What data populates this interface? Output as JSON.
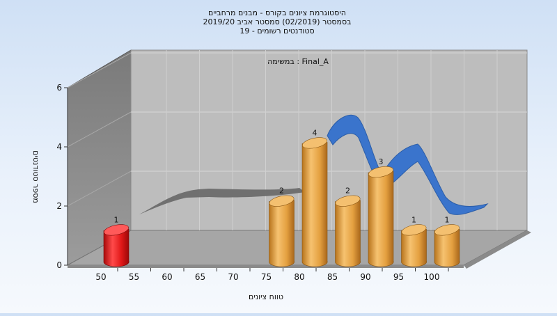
{
  "chart_data": {
    "type": "bar",
    "title_lines": [
      "היסטוגרמת ציונים בקורס - מבנים מרחביים",
      "בסמסטר  (02/2019)  סמסטר אביב 2019/20",
      "סטודנטים רשומים - 19"
    ],
    "task_label": "במשימה : Final_A",
    "xlabel": "טווח ציונים",
    "ylabel": "מספר סטודנטים",
    "x_ticks": [
      "50",
      "55",
      "60",
      "65",
      "70",
      "75",
      "80",
      "85",
      "90",
      "95",
      "100"
    ],
    "y_ticks": [
      "0",
      "2",
      "4",
      "6"
    ],
    "ylim": [
      0,
      6
    ],
    "bars": [
      {
        "x": 50,
        "value": 1,
        "label": "1",
        "color": "#e01818"
      },
      {
        "x": 75,
        "value": 2,
        "label": "2",
        "color": "#e8a442"
      },
      {
        "x": 80,
        "value": 4,
        "label": "4",
        "color": "#e8a442"
      },
      {
        "x": 85,
        "value": 2,
        "label": "2",
        "color": "#e8a442"
      },
      {
        "x": 90,
        "value": 3,
        "label": "3",
        "color": "#e8a442"
      },
      {
        "x": 95,
        "value": 1,
        "label": "1",
        "color": "#e8a442"
      },
      {
        "x": 100,
        "value": 1,
        "label": "1",
        "color": "#e8a442"
      }
    ],
    "curve_colors": {
      "back": "#6c6c6c",
      "front": "#3a74cc"
    },
    "colors": {
      "wall": "#bdbdbd",
      "side_wall": "#8c8c8c",
      "floor": "#a6a6a6"
    }
  }
}
